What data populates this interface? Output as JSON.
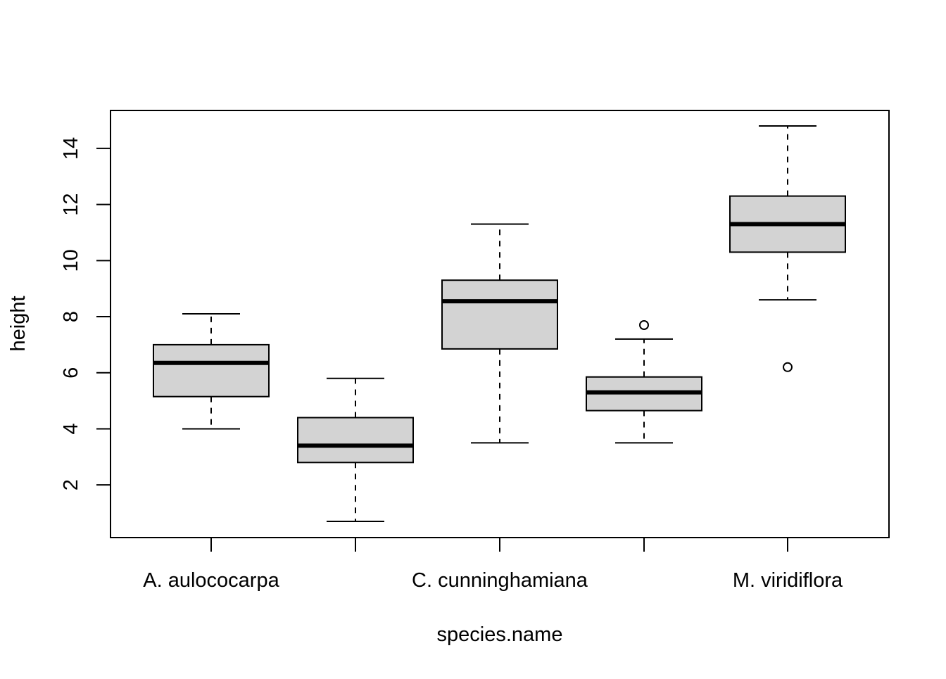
{
  "chart_data": {
    "type": "boxplot",
    "title": "",
    "xlabel": "species.name",
    "ylabel": "height",
    "ylim": [
      0.1,
      15.35
    ],
    "y_ticks": [
      2,
      4,
      6,
      8,
      10,
      12,
      14
    ],
    "categories": [
      "A. aulococarpa",
      "",
      "C. cunninghamiana",
      "",
      "M. viridiflora"
    ],
    "x_tick_labels": [
      "A. aulococarpa",
      "",
      "C. cunninghamiana",
      "",
      "M. viridiflora"
    ],
    "grid": false,
    "box_fill": "#d3d3d3",
    "stroke_color": "#000000",
    "boxes": [
      {
        "category_index": 0,
        "whisker_low": 4.0,
        "q1": 5.15,
        "median": 6.35,
        "q3": 7.0,
        "whisker_high": 8.1,
        "outliers": []
      },
      {
        "category_index": 1,
        "whisker_low": 0.7,
        "q1": 2.8,
        "median": 3.4,
        "q3": 4.4,
        "whisker_high": 5.8,
        "outliers": []
      },
      {
        "category_index": 2,
        "whisker_low": 3.5,
        "q1": 6.85,
        "median": 8.55,
        "q3": 9.3,
        "whisker_high": 11.3,
        "outliers": []
      },
      {
        "category_index": 3,
        "whisker_low": 3.5,
        "q1": 4.65,
        "median": 5.3,
        "q3": 5.85,
        "whisker_high": 7.2,
        "outliers": [
          7.7
        ]
      },
      {
        "category_index": 4,
        "whisker_low": 8.6,
        "q1": 10.3,
        "median": 11.3,
        "q3": 12.3,
        "whisker_high": 14.8,
        "outliers": [
          6.2
        ]
      }
    ]
  }
}
